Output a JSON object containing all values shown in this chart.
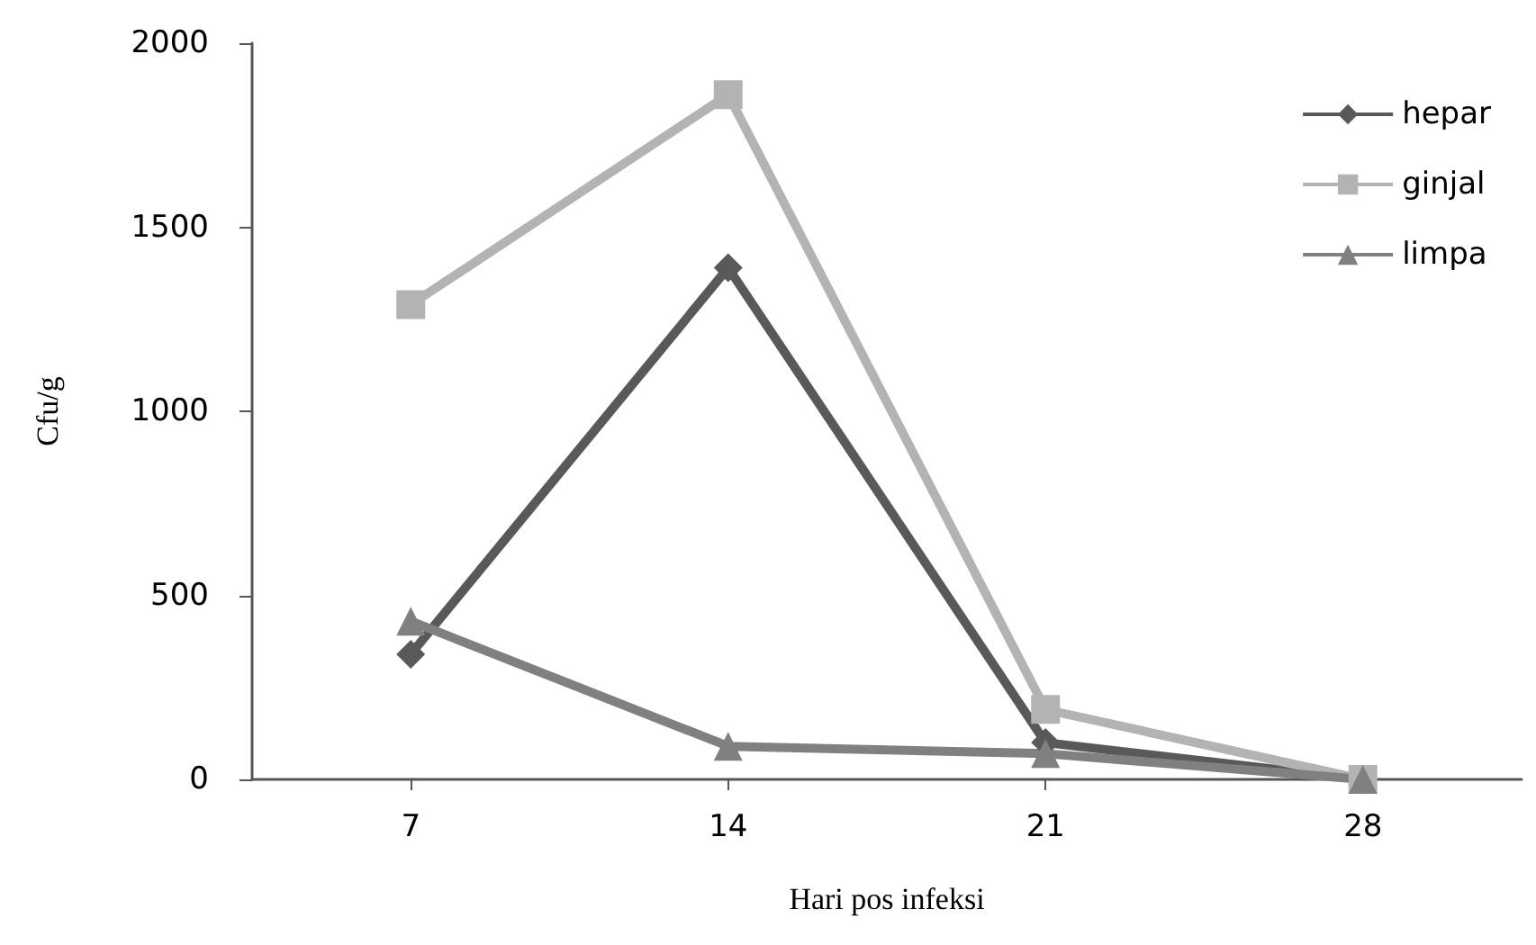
{
  "chart_data": {
    "type": "line",
    "xlabel": "Hari pos infeksi",
    "ylabel": "Cfu/g",
    "categories": [
      "7",
      "14",
      "21",
      "28"
    ],
    "series": [
      {
        "name": "hepar",
        "color": "#595959",
        "marker": "diamond",
        "values": [
          340,
          1390,
          100,
          0
        ]
      },
      {
        "name": "ginjal",
        "color": "#b3b3b3",
        "marker": "square",
        "values": [
          1290,
          1860,
          190,
          0
        ]
      },
      {
        "name": "limpa",
        "color": "#808080",
        "marker": "triangle",
        "values": [
          430,
          90,
          70,
          0
        ]
      }
    ],
    "ylim": [
      0,
      2000
    ],
    "yticks": [
      0,
      500,
      1000,
      1500,
      2000
    ],
    "grid": false,
    "legend": "top right"
  }
}
